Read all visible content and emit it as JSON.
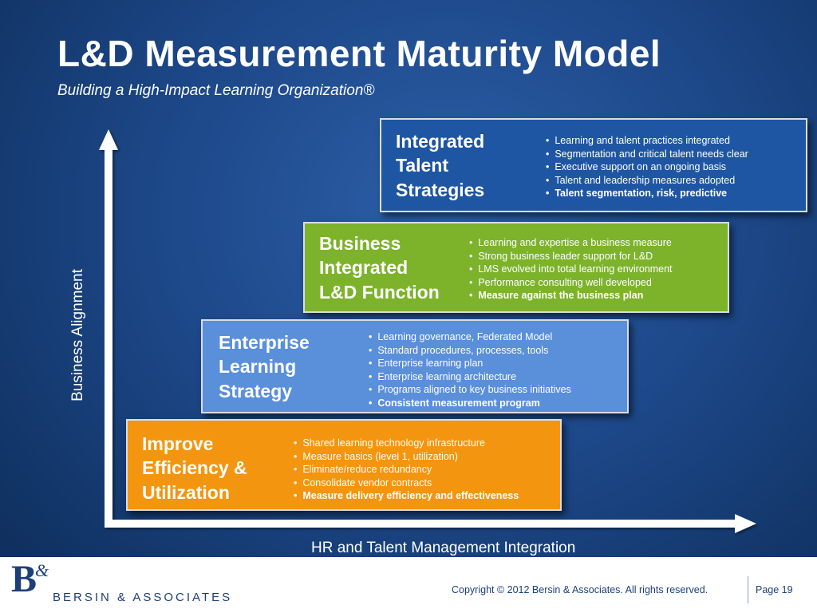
{
  "title": "L&D Measurement Maturity Model",
  "subtitle": "Building a High-Impact Learning Organization®",
  "axes": {
    "y_label": "Business Alignment",
    "x_label": "HR and Talent Management Integration"
  },
  "stages": [
    {
      "name_lines": [
        "Improve",
        "Efficiency &",
        "Utilization"
      ],
      "color": "#f4950f",
      "bullets": [
        "Shared learning technology infrastructure",
        "Measure basics (level 1, utilization)",
        "Eliminate/reduce redundancy",
        "Consolidate vendor contracts",
        "Measure delivery efficiency and effectiveness"
      ],
      "bold_bullet_index": 4
    },
    {
      "name_lines": [
        "Enterprise",
        "Learning",
        "Strategy"
      ],
      "color": "#5a8fda",
      "bullets": [
        "Learning governance, Federated Model",
        "Standard procedures, processes, tools",
        "Enterprise learning plan",
        "Enterprise learning architecture",
        "Programs aligned to key business initiatives",
        "Consistent measurement program"
      ],
      "bold_bullet_index": 5
    },
    {
      "name_lines": [
        "Business",
        "Integrated",
        "L&D Function"
      ],
      "color": "#7cb32b",
      "bullets": [
        "Learning  and expertise a business measure",
        "Strong business leader support for L&D",
        "LMS evolved into total learning environment",
        "Performance consulting well developed",
        "Measure against the business plan"
      ],
      "bold_bullet_index": 4
    },
    {
      "name_lines": [
        "Integrated",
        "Talent",
        "Strategies"
      ],
      "color": "#1f56a3",
      "bullets": [
        "Learning and talent practices integrated",
        "Segmentation and critical talent needs clear",
        "Executive support on an ongoing basis",
        "Talent and leadership measures adopted",
        "Talent segmentation, risk, predictive"
      ],
      "bold_bullet_index": 4
    }
  ],
  "footer": {
    "logo_mark": "B",
    "logo_amp": "&",
    "logo_text": "BERSIN & ASSOCIATES",
    "copyright": "Copyright © 2012 Bersin & Associates. All rights reserved.",
    "page": "Page 19"
  }
}
